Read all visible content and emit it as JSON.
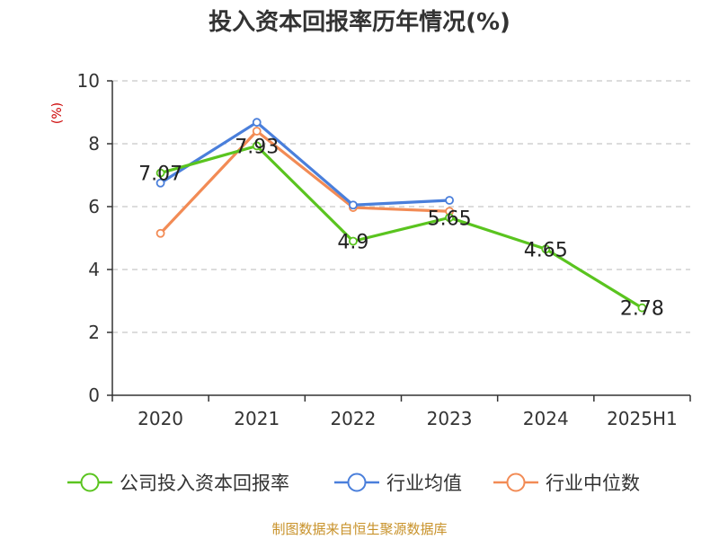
{
  "colors": {
    "company": "#5ac41f",
    "industry_avg": "#4a7fdb",
    "industry_median": "#f28b55"
  },
  "chart_data": {
    "type": "line",
    "title": "投入资本回报率历年情况(%)",
    "ylabel": "(%)",
    "xlabel": "",
    "categories": [
      "2020",
      "2021",
      "2022",
      "2023",
      "2024",
      "2025H1"
    ],
    "ylim": [
      0,
      10
    ],
    "yticks": [
      0,
      2,
      4,
      6,
      8,
      10
    ],
    "grid": true,
    "legend_position": "bottom",
    "series": [
      {
        "name": "公司投入资本回报率",
        "color_key": "company",
        "values": [
          7.07,
          7.93,
          4.9,
          5.65,
          4.65,
          2.78
        ],
        "labels": true
      },
      {
        "name": "行业均值",
        "color_key": "industry_avg",
        "values": [
          6.75,
          8.68,
          6.05,
          6.2,
          null,
          null
        ],
        "labels": false
      },
      {
        "name": "行业中位数",
        "color_key": "industry_median",
        "values": [
          5.15,
          8.4,
          5.97,
          5.85,
          null,
          null
        ],
        "labels": false
      }
    ]
  },
  "source_note": "制图数据来自恒生聚源数据库"
}
